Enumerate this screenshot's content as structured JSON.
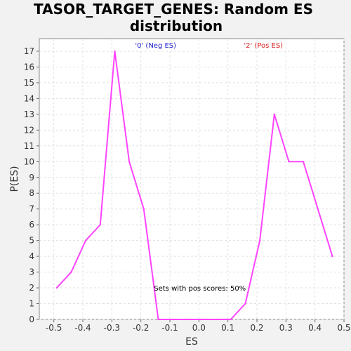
{
  "chart_data": {
    "type": "line",
    "title_line1": "TASOR_TARGET_GENES: Random ES",
    "title_line2": "distribution",
    "xlabel": "ES",
    "ylabel": "P(ES)",
    "xlim": [
      -0.55,
      0.5
    ],
    "ylim": [
      0,
      17.8
    ],
    "x_ticks": [
      -0.5,
      -0.4,
      -0.3,
      -0.2,
      -0.1,
      0.0,
      0.1,
      0.2,
      0.3,
      0.4,
      0.5
    ],
    "x_tick_labels": [
      "-0.5",
      "-0.4",
      "-0.3",
      "-0.2",
      "-0.1",
      "0.0",
      "0.1",
      "0.2",
      "0.3",
      "0.4",
      "0.5"
    ],
    "y_ticks": [
      0,
      1,
      2,
      3,
      4,
      5,
      6,
      7,
      8,
      9,
      10,
      11,
      12,
      13,
      14,
      15,
      16,
      17
    ],
    "y_tick_labels": [
      "0",
      "1",
      "2",
      "3",
      "4",
      "5",
      "6",
      "7",
      "8",
      "9",
      "10",
      "11",
      "12",
      "13",
      "14",
      "15",
      "16",
      "17"
    ],
    "grid": true,
    "series": [
      {
        "color": "#ff44ff",
        "x": [
          -0.49,
          -0.44,
          -0.39,
          -0.34,
          -0.29,
          -0.24,
          -0.19,
          -0.14,
          -0.09,
          -0.04,
          0.01,
          0.06,
          0.11,
          0.16,
          0.21,
          0.26,
          0.31,
          0.36,
          0.41,
          0.46
        ],
        "y": [
          2,
          3,
          5,
          6,
          17,
          10,
          7,
          0,
          0,
          0,
          0,
          0,
          0,
          1,
          5,
          13,
          10,
          10,
          7,
          4
        ]
      }
    ],
    "annotations": {
      "neg_label": {
        "text": "'0' (Neg ES)",
        "color": "#2222cc",
        "x": -0.22
      },
      "pos_label": {
        "text": "'2' (Pos ES)",
        "color": "#dd2222",
        "x": 0.155
      },
      "pos_scores": {
        "text": "Sets with pos scores: 50%",
        "color": "#000000",
        "x": -0.155,
        "y": 2
      }
    }
  }
}
